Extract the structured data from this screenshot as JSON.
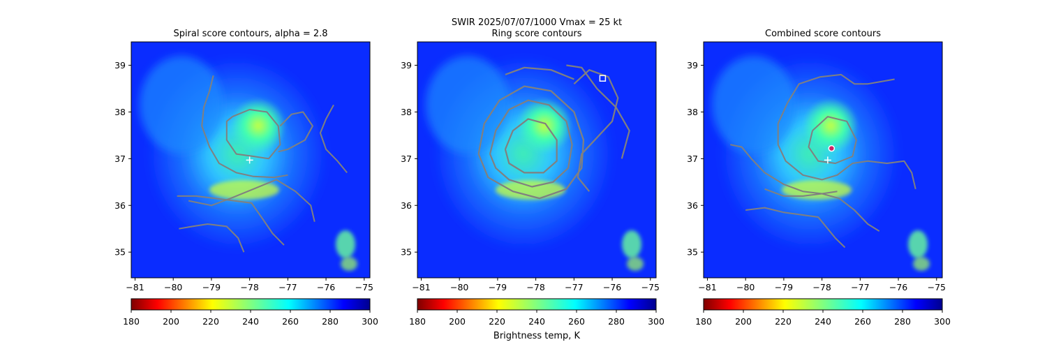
{
  "figure": {
    "suptitle_line1": "SWIR  2025/07/07/1000    Vmax = 25 kt",
    "colorbar_label": "Brightness temp, K"
  },
  "colors": {
    "contour": "#808080",
    "marker_white": "#ffffff",
    "marker_center": "#cc2266",
    "colormap": [
      "#7f0000",
      "#ff0000",
      "#ff8000",
      "#ffff00",
      "#80ff80",
      "#00ffff",
      "#0080ff",
      "#0000ff",
      "#00008f"
    ]
  },
  "colorbar": {
    "cmap": "jet_r",
    "range": [
      180,
      300
    ],
    "ticks": [
      "180",
      "200",
      "220",
      "240",
      "260",
      "280",
      "300"
    ]
  },
  "chart_data": [
    {
      "type": "heatmap",
      "title": "Spiral score contours, alpha =  2.8",
      "xlim": [
        -81.1,
        -74.85
      ],
      "ylim": [
        34.45,
        39.5
      ],
      "xticks": [
        "−81",
        "−80",
        "−79",
        "−78",
        "−77",
        "−76",
        "−75"
      ],
      "yticks": [
        "35",
        "36",
        "37",
        "38",
        "39"
      ],
      "markers": [
        {
          "type": "plus",
          "x": -78.0,
          "y": 36.97
        }
      ],
      "contours": [
        [
          [
            -78.95,
            38.78
          ],
          [
            -79.05,
            38.45
          ],
          [
            -79.2,
            38.1
          ],
          [
            -79.25,
            37.7
          ],
          [
            -79.05,
            37.25
          ],
          [
            -78.8,
            36.9
          ],
          [
            -78.35,
            36.7
          ],
          [
            -77.9,
            36.62
          ],
          [
            -77.35,
            36.6
          ],
          [
            -77.0,
            36.65
          ]
        ],
        [
          [
            -78.45,
            37.9
          ],
          [
            -78.0,
            38.05
          ],
          [
            -77.55,
            38.0
          ],
          [
            -77.25,
            37.7
          ],
          [
            -77.2,
            37.3
          ],
          [
            -77.5,
            37.0
          ],
          [
            -77.9,
            37.05
          ],
          [
            -78.35,
            37.1
          ],
          [
            -78.6,
            37.4
          ],
          [
            -78.6,
            37.8
          ],
          [
            -78.45,
            37.9
          ]
        ],
        [
          [
            -77.2,
            37.7
          ],
          [
            -76.9,
            37.95
          ],
          [
            -76.6,
            38.0
          ],
          [
            -76.35,
            37.7
          ],
          [
            -76.55,
            37.4
          ],
          [
            -77.0,
            37.2
          ],
          [
            -77.25,
            37.15
          ]
        ],
        [
          [
            -79.9,
            36.2
          ],
          [
            -79.4,
            36.2
          ],
          [
            -78.9,
            36.15
          ],
          [
            -78.4,
            36.1
          ],
          [
            -77.95,
            36.05
          ],
          [
            -77.65,
            35.7
          ],
          [
            -77.4,
            35.4
          ],
          [
            -77.1,
            35.15
          ]
        ],
        [
          [
            -79.6,
            36.1
          ],
          [
            -79.0,
            36.0
          ],
          [
            -78.5,
            36.15
          ],
          [
            -77.9,
            36.35
          ],
          [
            -77.3,
            36.55
          ],
          [
            -76.8,
            36.3
          ],
          [
            -76.4,
            36.0
          ],
          [
            -76.3,
            35.65
          ]
        ],
        [
          [
            -79.85,
            35.5
          ],
          [
            -79.5,
            35.55
          ],
          [
            -79.1,
            35.6
          ],
          [
            -78.6,
            35.55
          ],
          [
            -78.3,
            35.3
          ],
          [
            -78.15,
            35.0
          ]
        ],
        [
          [
            -75.8,
            38.15
          ],
          [
            -76.0,
            37.85
          ],
          [
            -76.15,
            37.55
          ],
          [
            -76.0,
            37.2
          ],
          [
            -75.7,
            36.95
          ],
          [
            -75.45,
            36.7
          ]
        ]
      ]
    },
    {
      "type": "heatmap",
      "title": "Ring score contours",
      "xlim": [
        -81.1,
        -74.85
      ],
      "ylim": [
        34.45,
        39.5
      ],
      "xticks": [
        "−81",
        "−80",
        "−79",
        "−78",
        "−77",
        "−76",
        "−75"
      ],
      "yticks": [
        "35",
        "36",
        "37",
        "38",
        "39"
      ],
      "markers": [
        {
          "type": "square",
          "x": -76.25,
          "y": 38.72
        }
      ],
      "contours": [
        [
          [
            -79.5,
            37.1
          ],
          [
            -79.35,
            37.75
          ],
          [
            -78.95,
            38.25
          ],
          [
            -78.3,
            38.55
          ],
          [
            -77.6,
            38.45
          ],
          [
            -77.0,
            38.0
          ],
          [
            -76.75,
            37.4
          ],
          [
            -76.8,
            36.8
          ],
          [
            -77.2,
            36.35
          ],
          [
            -77.9,
            36.15
          ],
          [
            -78.6,
            36.3
          ],
          [
            -79.25,
            36.6
          ],
          [
            -79.5,
            37.1
          ]
        ],
        [
          [
            -79.2,
            37.1
          ],
          [
            -79.05,
            37.6
          ],
          [
            -78.7,
            38.05
          ],
          [
            -78.2,
            38.25
          ],
          [
            -77.65,
            38.15
          ],
          [
            -77.2,
            37.8
          ],
          [
            -77.05,
            37.3
          ],
          [
            -77.15,
            36.8
          ],
          [
            -77.55,
            36.5
          ],
          [
            -78.1,
            36.4
          ],
          [
            -78.7,
            36.55
          ],
          [
            -79.05,
            36.8
          ],
          [
            -79.2,
            37.1
          ]
        ],
        [
          [
            -78.8,
            37.2
          ],
          [
            -78.6,
            37.6
          ],
          [
            -78.2,
            37.85
          ],
          [
            -77.75,
            37.75
          ],
          [
            -77.45,
            37.4
          ],
          [
            -77.45,
            36.95
          ],
          [
            -77.8,
            36.7
          ],
          [
            -78.3,
            36.7
          ],
          [
            -78.7,
            36.9
          ],
          [
            -78.8,
            37.2
          ]
        ],
        [
          [
            -77.0,
            38.6
          ],
          [
            -76.6,
            38.9
          ],
          [
            -76.1,
            38.75
          ],
          [
            -75.85,
            38.3
          ],
          [
            -76.0,
            37.8
          ],
          [
            -76.4,
            37.45
          ],
          [
            -76.8,
            37.1
          ],
          [
            -76.9,
            36.6
          ],
          [
            -76.6,
            36.3
          ]
        ],
        [
          [
            -78.8,
            38.8
          ],
          [
            -78.3,
            38.95
          ],
          [
            -77.6,
            38.9
          ],
          [
            -77.0,
            38.7
          ]
        ],
        [
          [
            -77.2,
            39.0
          ],
          [
            -76.8,
            38.95
          ],
          [
            -76.4,
            38.5
          ],
          [
            -75.9,
            38.1
          ],
          [
            -75.55,
            37.6
          ],
          [
            -75.75,
            37.0
          ]
        ]
      ]
    },
    {
      "type": "heatmap",
      "title": "Combined score contours",
      "xlim": [
        -81.1,
        -74.85
      ],
      "ylim": [
        34.45,
        39.5
      ],
      "xticks": [
        "−81",
        "−80",
        "−79",
        "−78",
        "−77",
        "−76",
        "−75"
      ],
      "yticks": [
        "35",
        "36",
        "37",
        "38",
        "39"
      ],
      "markers": [
        {
          "type": "plus",
          "x": -77.85,
          "y": 36.97
        },
        {
          "type": "circle",
          "x": -77.75,
          "y": 37.22
        }
      ],
      "contours": [
        [
          [
            -78.25,
            37.6
          ],
          [
            -77.85,
            37.9
          ],
          [
            -77.35,
            37.8
          ],
          [
            -77.1,
            37.4
          ],
          [
            -77.2,
            37.05
          ],
          [
            -77.65,
            36.9
          ],
          [
            -78.1,
            36.95
          ],
          [
            -78.35,
            37.25
          ],
          [
            -78.25,
            37.6
          ]
        ],
        [
          [
            -78.9,
            38.2
          ],
          [
            -78.6,
            38.6
          ],
          [
            -78.05,
            38.75
          ],
          [
            -77.5,
            38.8
          ],
          [
            -77.15,
            38.6
          ],
          [
            -76.8,
            38.6
          ],
          [
            -76.45,
            38.65
          ],
          [
            -76.1,
            38.7
          ]
        ],
        [
          [
            -80.4,
            37.3
          ],
          [
            -80.1,
            37.25
          ],
          [
            -79.85,
            37.0
          ],
          [
            -79.5,
            36.7
          ],
          [
            -79.0,
            36.45
          ],
          [
            -78.5,
            36.3
          ],
          [
            -78.0,
            36.25
          ],
          [
            -77.6,
            36.3
          ]
        ],
        [
          [
            -78.9,
            38.2
          ],
          [
            -79.15,
            37.75
          ],
          [
            -79.15,
            37.3
          ],
          [
            -78.95,
            36.95
          ],
          [
            -78.5,
            36.65
          ],
          [
            -78.0,
            36.55
          ],
          [
            -77.6,
            36.65
          ],
          [
            -77.2,
            36.9
          ],
          [
            -76.8,
            36.95
          ],
          [
            -76.3,
            36.9
          ],
          [
            -75.85,
            36.95
          ],
          [
            -75.65,
            36.7
          ],
          [
            -75.55,
            36.35
          ]
        ],
        [
          [
            -80.0,
            35.9
          ],
          [
            -79.5,
            35.95
          ],
          [
            -79.0,
            35.85
          ],
          [
            -78.55,
            35.8
          ],
          [
            -78.1,
            35.75
          ],
          [
            -77.9,
            35.55
          ],
          [
            -77.65,
            35.3
          ],
          [
            -77.4,
            35.1
          ]
        ],
        [
          [
            -79.5,
            36.35
          ],
          [
            -79.0,
            36.2
          ],
          [
            -78.5,
            36.2
          ],
          [
            -78.0,
            36.25
          ],
          [
            -77.55,
            36.15
          ],
          [
            -77.15,
            35.9
          ],
          [
            -76.8,
            35.6
          ],
          [
            -76.5,
            35.45
          ]
        ]
      ]
    }
  ]
}
